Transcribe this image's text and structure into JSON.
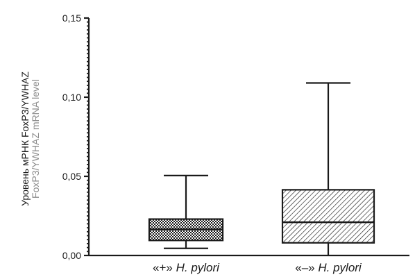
{
  "chart_data": {
    "type": "boxplot",
    "ylabel_ru": "Уровень мРНК FoxP3/YWHAZ",
    "ylabel_en": "FoxP3/YWHAZ mRNA level",
    "ylim": [
      0,
      0.15
    ],
    "y_ticks": [
      {
        "value": 0.0,
        "label": "0,00"
      },
      {
        "value": 0.05,
        "label": "0,05"
      },
      {
        "value": 0.1,
        "label": "0,10"
      },
      {
        "value": 0.15,
        "label": "0,15"
      }
    ],
    "minor_tick_step": 0.0025,
    "categories": [
      {
        "prefix": "«+» ",
        "name": "H. pylori"
      },
      {
        "prefix": "«–» ",
        "name": "H. pylori"
      }
    ],
    "boxes": [
      {
        "min": 0.0045,
        "q1": 0.0095,
        "median": 0.0165,
        "q3": 0.023,
        "max": 0.0505,
        "fill": "checker"
      },
      {
        "min": 0.0,
        "q1": 0.008,
        "median": 0.021,
        "q3": 0.0415,
        "max": 0.109,
        "fill": "hatch"
      }
    ],
    "colors": {
      "ink": "#1a1a1a",
      "secondary_label": "#8c8c8c"
    }
  }
}
